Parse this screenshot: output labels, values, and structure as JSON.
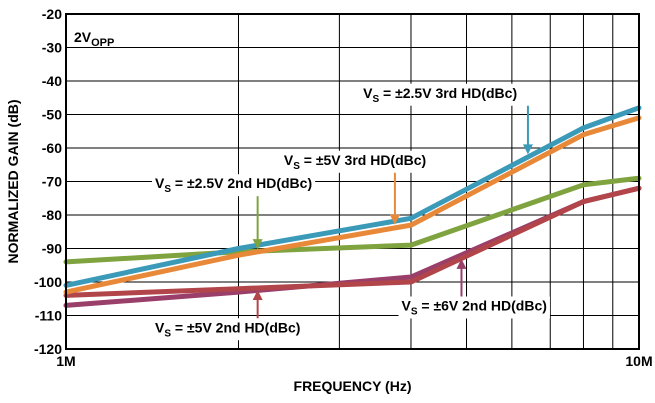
{
  "chart_data": {
    "type": "line",
    "xscale": "log",
    "xlim": [
      1,
      10
    ],
    "ylim": [
      -120,
      -20
    ],
    "grid": true,
    "x_ticks": [
      {
        "value": 1,
        "label": "1M"
      },
      {
        "value": 10,
        "label": "10M"
      }
    ],
    "y_ticks": [
      {
        "value": -20,
        "label": "-20"
      },
      {
        "value": -30,
        "label": "-30"
      },
      {
        "value": -40,
        "label": "-40"
      },
      {
        "value": -50,
        "label": "-50"
      },
      {
        "value": -60,
        "label": "-60"
      },
      {
        "value": -70,
        "label": "-70"
      },
      {
        "value": -80,
        "label": "-80"
      },
      {
        "value": -90,
        "label": "-90"
      },
      {
        "value": -100,
        "label": "-100"
      },
      {
        "value": -110,
        "label": "-110"
      },
      {
        "value": -120,
        "label": "-120"
      }
    ],
    "xlabel": "FREQUENCY (Hz)",
    "ylabel": "NORMALIZED GAIN (dB)",
    "corner_label": {
      "main": "2V",
      "sub": "OPP"
    },
    "series": [
      {
        "name": "VS = ±2.5V 3rd HD(dBc)",
        "label": {
          "pre": "V",
          "sub": "S",
          "post": " = ±2.5V 3rd HD(dBc)"
        },
        "color": "#3a9ab8",
        "x": [
          1,
          2,
          4,
          8,
          10
        ],
        "y": [
          -101,
          -90,
          -81,
          -54,
          -48
        ],
        "pointer": {
          "x": 6.4,
          "y": -62.5
        },
        "text_anchor": {
          "x": 3.3,
          "y": -45
        }
      },
      {
        "name": "VS = ±5V 3rd HD(dBc)",
        "label": {
          "pre": "V",
          "sub": "S",
          "post": " = ±5V 3rd HD(dBc)"
        },
        "color": "#e8893a",
        "x": [
          1,
          2,
          4,
          8,
          10
        ],
        "y": [
          -103,
          -92,
          -83,
          -56,
          -51
        ],
        "pointer": {
          "x": 3.75,
          "y": -83.5
        },
        "text_anchor": {
          "x": 2.4,
          "y": -65
        }
      },
      {
        "name": "VS = ±2.5V 2nd HD(dBc)",
        "label": {
          "pre": "V",
          "sub": "S",
          "post": " = ±2.5V 2nd HD(dBc)"
        },
        "color": "#7fa33e",
        "x": [
          1,
          2,
          4,
          8,
          10
        ],
        "y": [
          -94,
          -91,
          -89,
          -71,
          -69
        ],
        "pointer": {
          "x": 2.16,
          "y": -90.8
        },
        "text_anchor": {
          "x": 1.43,
          "y": -72
        }
      },
      {
        "name": "VS = ±5V 2nd HD(dBc)",
        "label": {
          "pre": "V",
          "sub": "S",
          "post": " = ±5V 2nd HD(dBc)"
        },
        "color": "#b2454a",
        "x": [
          1,
          2,
          4,
          8,
          10
        ],
        "y": [
          -104,
          -102,
          -100,
          -76,
          -72
        ],
        "pointer": {
          "x": 2.16,
          "y": -101.8
        },
        "text_anchor": {
          "x": 1.43,
          "y": -115
        }
      },
      {
        "name": "VS = ±6V 2nd HD(dBc)",
        "label": {
          "pre": "V",
          "sub": "S",
          "post": " = ±6V 2nd HD(dBc)"
        },
        "color": "#9a3f6a",
        "x": [
          1,
          2,
          4,
          8,
          10
        ],
        "y": [
          -107,
          -103,
          -98.5,
          -76,
          -72
        ],
        "pointer": {
          "x": 4.9,
          "y": -92.5
        },
        "text_anchor": {
          "x": 3.85,
          "y": -108.5
        }
      }
    ]
  }
}
